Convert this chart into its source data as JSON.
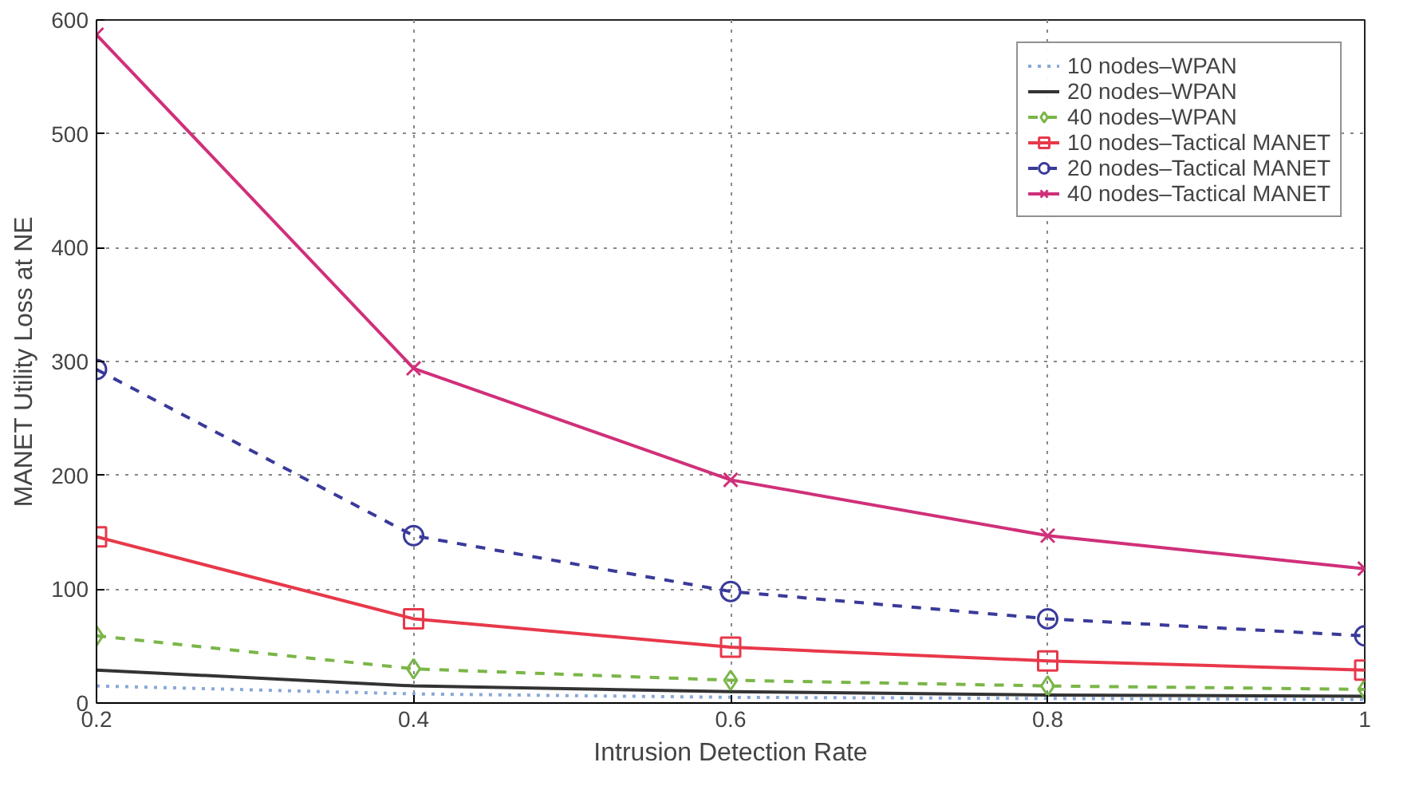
{
  "chart_data": {
    "type": "line",
    "xlabel": "Intrusion Detection Rate",
    "ylabel": "MANET Utility Loss at NE",
    "x": [
      0.2,
      0.4,
      0.6,
      0.8,
      1
    ],
    "xlim": [
      0.2,
      1
    ],
    "xticks": [
      0.2,
      0.4,
      0.6,
      0.8,
      1
    ],
    "ylim": [
      0,
      600
    ],
    "yticks": [
      0,
      100,
      200,
      300,
      400,
      500,
      600
    ],
    "grid": true,
    "legend": "top right",
    "series": [
      {
        "name": "10 nodes–WPAN",
        "color": "#8aa8d8",
        "line_style": "dotted",
        "marker": "none",
        "values": [
          15,
          8,
          5,
          4,
          3
        ]
      },
      {
        "name": "20 nodes–WPAN",
        "color": "#333333",
        "line_style": "solid",
        "marker": "none",
        "values": [
          29,
          15,
          10,
          7,
          6
        ]
      },
      {
        "name": "40 nodes–WPAN",
        "color": "#7ab648",
        "line_style": "dashed",
        "marker": "diamond",
        "values": [
          59,
          30,
          20,
          15,
          12
        ]
      },
      {
        "name": "10 nodes–Tactical MANET",
        "color": "#e8384a",
        "line_style": "solid",
        "marker": "square",
        "values": [
          146,
          74,
          49,
          37,
          29
        ]
      },
      {
        "name": "20 nodes–Tactical MANET",
        "color": "#3a3a9a",
        "line_style": "dashed",
        "marker": "circle",
        "values": [
          293,
          147,
          98,
          74,
          59
        ]
      },
      {
        "name": "40 nodes–Tactical MANET",
        "color": "#d0307a",
        "line_style": "solid",
        "marker": "cross",
        "values": [
          587,
          294,
          196,
          147,
          118
        ]
      }
    ]
  }
}
